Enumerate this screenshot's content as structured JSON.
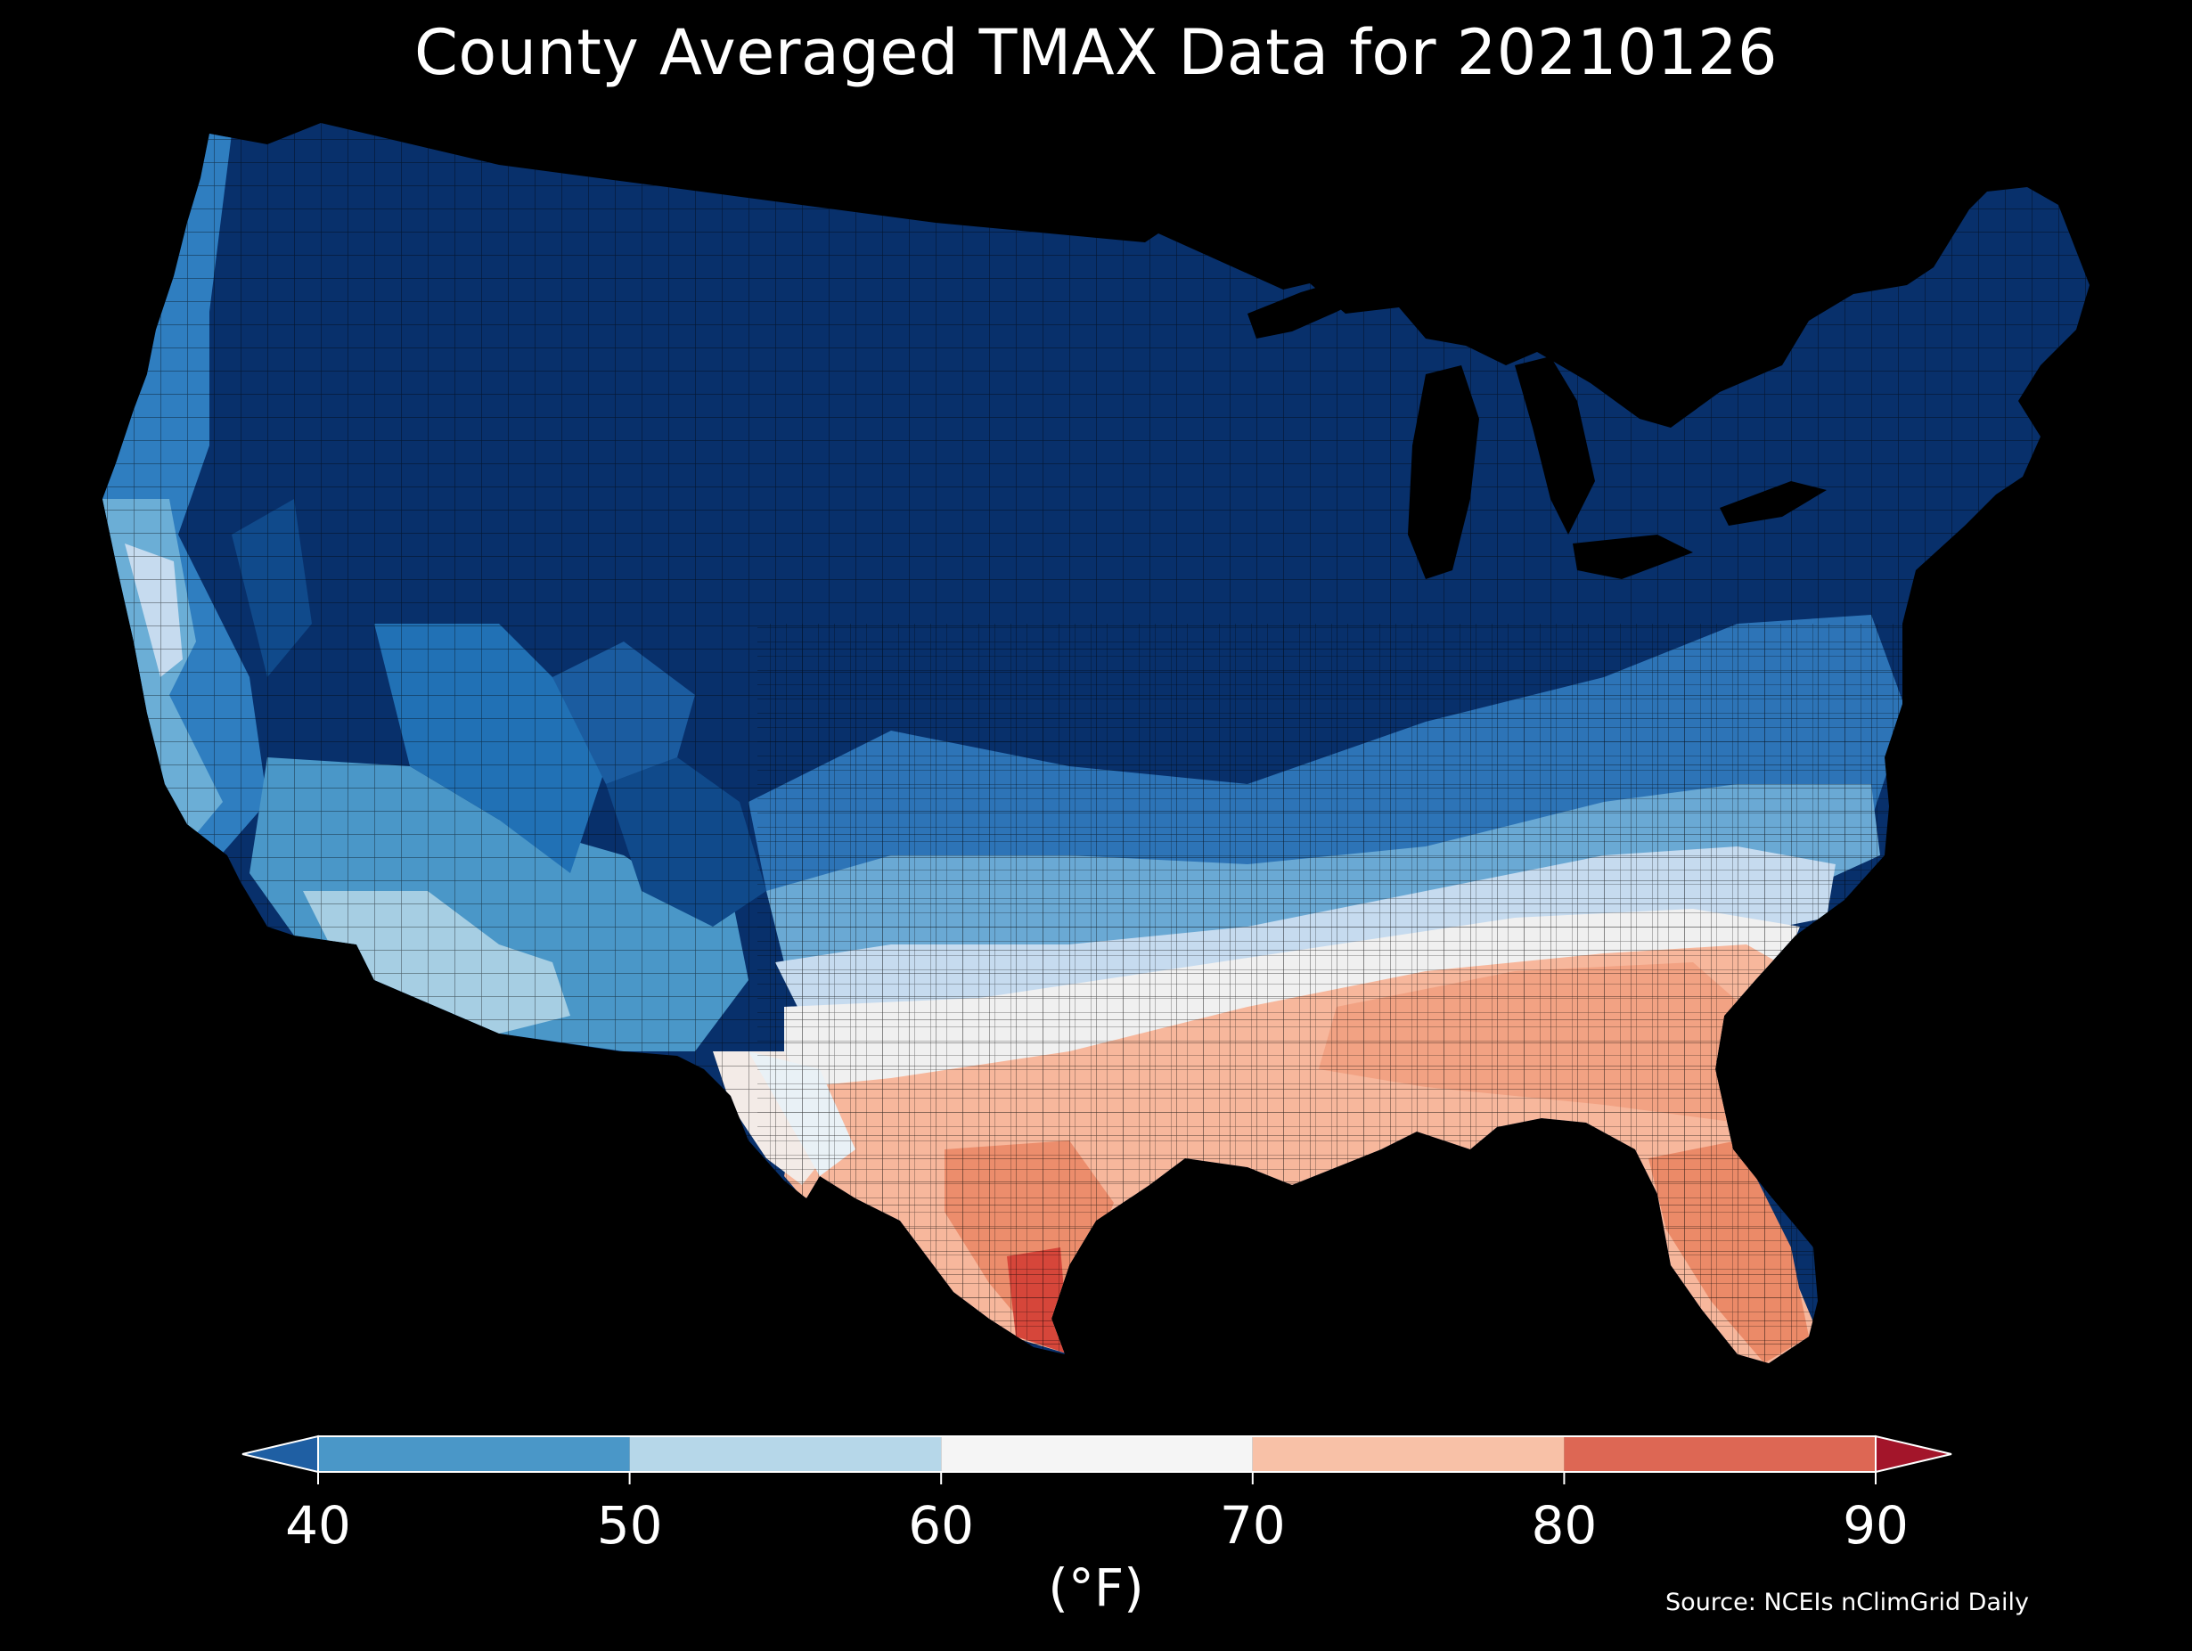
{
  "title": "County Averaged TMAX Data for 20210126",
  "colorbar": {
    "unit_label": "(°F)",
    "ticks": [
      "40",
      "50",
      "60",
      "70",
      "80",
      "90"
    ],
    "bins": [
      {
        "range": "<40",
        "color": "#1f5fa3"
      },
      {
        "range": "40-50",
        "color": "#4a97c8"
      },
      {
        "range": "50-60",
        "color": "#b6d7e9"
      },
      {
        "range": "60-70",
        "color": "#f5f5f5"
      },
      {
        "range": "70-80",
        "color": "#f8c1a7"
      },
      {
        "range": "80-90",
        "color": "#dd6754"
      },
      {
        "range": ">90",
        "color": "#a3152a"
      }
    ]
  },
  "source": "Source: NCEIs nClimGrid Daily",
  "map_colors": {
    "deep_blue": "#08306b",
    "dark_blue": "#104a8b",
    "mid_blue": "#2171b5",
    "light_blue": "#6baed6",
    "pale_blue": "#c6dbef",
    "white": "#f1f1f1",
    "light_salmon": "#f9c5ac",
    "salmon": "#ef8c6b",
    "red": "#d6463a"
  }
}
